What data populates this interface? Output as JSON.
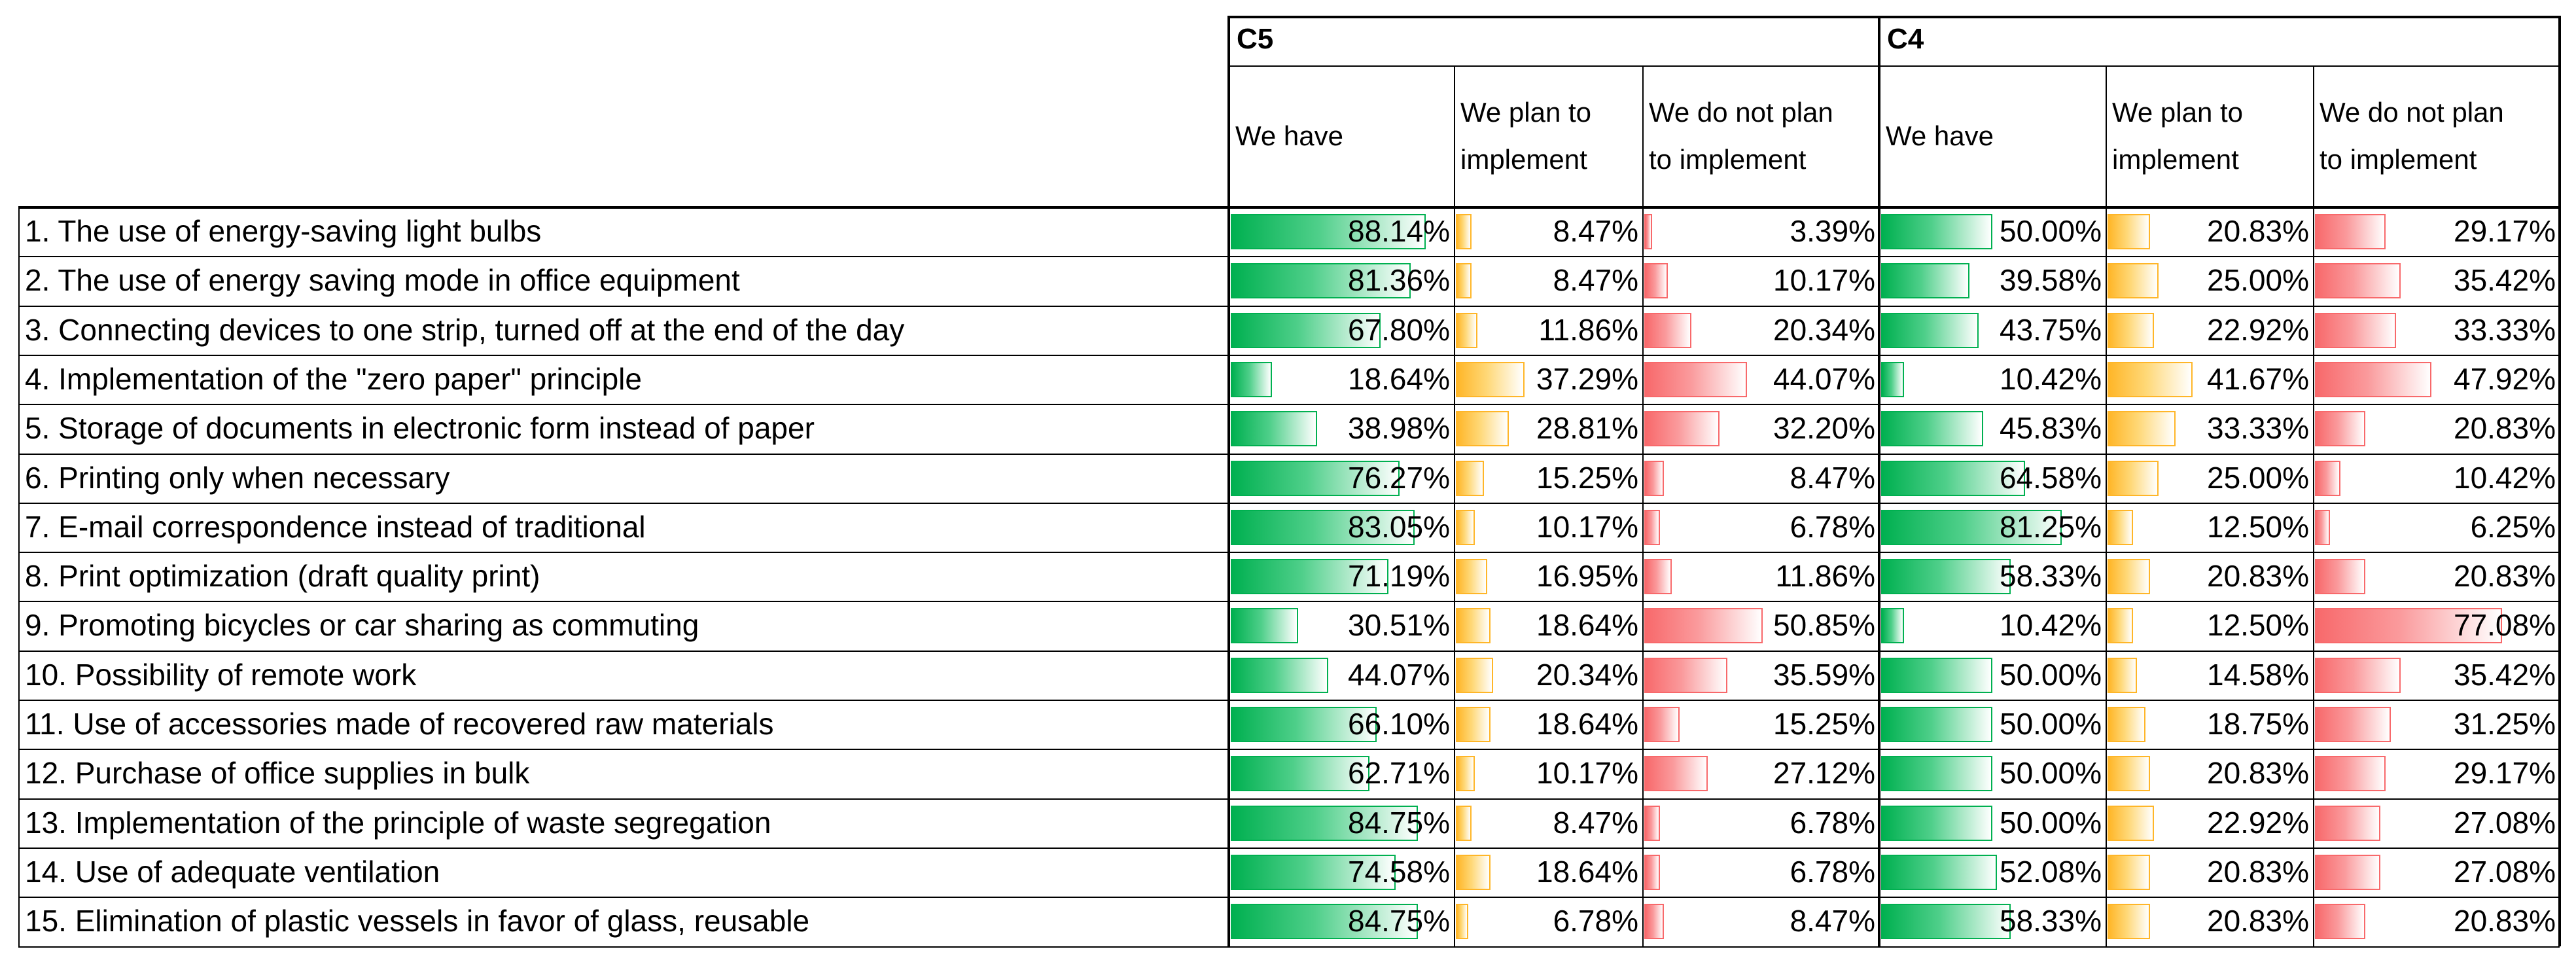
{
  "chart_data": {
    "type": "table",
    "groups": [
      "C5",
      "C4"
    ],
    "columns": [
      "We have",
      "We plan to implement",
      "We do not plan to implement"
    ],
    "column_lines": [
      [
        "We have"
      ],
      [
        "We plan to",
        "implement"
      ],
      [
        "We do not plan",
        "to implement"
      ]
    ],
    "colors": {
      "we_have": "#00b050",
      "plan": "#ffb628",
      "not_plan": "#f8696b"
    },
    "unit": "%",
    "rows": [
      {
        "label": "1. The use of energy-saving light bulbs",
        "C5": [
          88.14,
          8.47,
          3.39
        ],
        "C4": [
          50.0,
          20.83,
          29.17
        ]
      },
      {
        "label": "2. The use of energy saving mode in office equipment",
        "C5": [
          81.36,
          8.47,
          10.17
        ],
        "C4": [
          39.58,
          25.0,
          35.42
        ]
      },
      {
        "label": "3. Connecting devices to one strip, turned off at the end of the day",
        "C5": [
          67.8,
          11.86,
          20.34
        ],
        "C4": [
          43.75,
          22.92,
          33.33
        ]
      },
      {
        "label": "4. Implementation of the \"zero paper\" principle",
        "C5": [
          18.64,
          37.29,
          44.07
        ],
        "C4": [
          10.42,
          41.67,
          47.92
        ]
      },
      {
        "label": "5. Storage of documents in electronic form instead of paper",
        "C5": [
          38.98,
          28.81,
          32.2
        ],
        "C4": [
          45.83,
          33.33,
          20.83
        ]
      },
      {
        "label": "6. Printing only when necessary",
        "C5": [
          76.27,
          15.25,
          8.47
        ],
        "C4": [
          64.58,
          25.0,
          10.42
        ]
      },
      {
        "label": "7. E-mail correspondence instead of traditional",
        "C5": [
          83.05,
          10.17,
          6.78
        ],
        "C4": [
          81.25,
          12.5,
          6.25
        ]
      },
      {
        "label": "8. Print optimization (draft quality print)",
        "C5": [
          71.19,
          16.95,
          11.86
        ],
        "C4": [
          58.33,
          20.83,
          20.83
        ]
      },
      {
        "label": "9. Promoting bicycles or car sharing as commuting",
        "C5": [
          30.51,
          18.64,
          50.85
        ],
        "C4": [
          10.42,
          12.5,
          77.08
        ]
      },
      {
        "label": "10. Possibility of remote work",
        "C5": [
          44.07,
          20.34,
          35.59
        ],
        "C4": [
          50.0,
          14.58,
          35.42
        ]
      },
      {
        "label": "11. Use of accessories made of recovered raw materials",
        "C5": [
          66.1,
          18.64,
          15.25
        ],
        "C4": [
          50.0,
          18.75,
          31.25
        ]
      },
      {
        "label": "12. Purchase of office supplies in bulk",
        "C5": [
          62.71,
          10.17,
          27.12
        ],
        "C4": [
          50.0,
          20.83,
          29.17
        ]
      },
      {
        "label": "13. Implementation of the principle of waste segregation",
        "C5": [
          84.75,
          8.47,
          6.78
        ],
        "C4": [
          50.0,
          22.92,
          27.08
        ]
      },
      {
        "label": "14. Use of adequate ventilation",
        "C5": [
          74.58,
          18.64,
          6.78
        ],
        "C4": [
          52.08,
          20.83,
          27.08
        ]
      },
      {
        "label": "15. Elimination of plastic vessels in favor of glass, reusable",
        "C5": [
          84.75,
          6.78,
          8.47
        ],
        "C4": [
          58.33,
          20.83,
          20.83
        ]
      }
    ]
  }
}
